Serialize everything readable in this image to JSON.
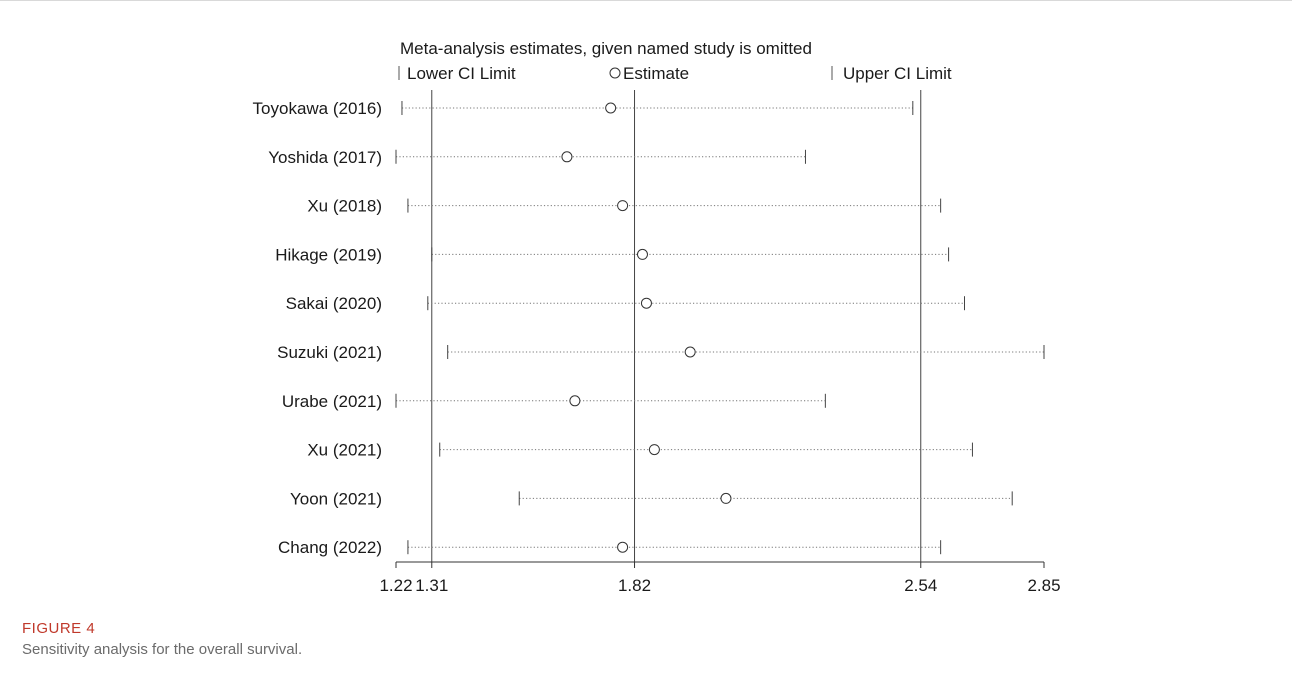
{
  "chart_data": {
    "type": "scatter",
    "title": "Meta-analysis estimates, given named study is omitted",
    "legend": {
      "placement": "top",
      "lower": "Lower CI Limit",
      "estimate": "Estimate",
      "upper": "Upper CI Limit"
    },
    "xlim": [
      1.22,
      2.85
    ],
    "x_ticks": [
      1.22,
      1.31,
      1.82,
      2.54,
      2.85
    ],
    "x_tick_labels": [
      "1.22",
      "1.31",
      "1.82",
      "2.54",
      "2.85"
    ],
    "reference_lines": [
      1.31,
      1.82,
      2.54
    ],
    "studies": [
      "Toyokawa (2016)",
      "Yoshida (2017)",
      "Xu (2018)",
      "Hikage (2019)",
      "Sakai (2020)",
      "Suzuki (2021)",
      "Urabe (2021)",
      "Xu (2021)",
      "Yoon (2021)",
      "Chang (2022)"
    ],
    "lower": [
      1.235,
      1.22,
      1.25,
      1.31,
      1.3,
      1.35,
      1.22,
      1.33,
      1.53,
      1.25
    ],
    "estimate": [
      1.76,
      1.65,
      1.79,
      1.84,
      1.85,
      1.96,
      1.67,
      1.87,
      2.05,
      1.79
    ],
    "upper": [
      2.52,
      2.25,
      2.59,
      2.61,
      2.65,
      2.85,
      2.3,
      2.67,
      2.77,
      2.59
    ]
  },
  "caption": {
    "label": "FIGURE 4",
    "text": "Sensitivity analysis for the overall survival."
  }
}
